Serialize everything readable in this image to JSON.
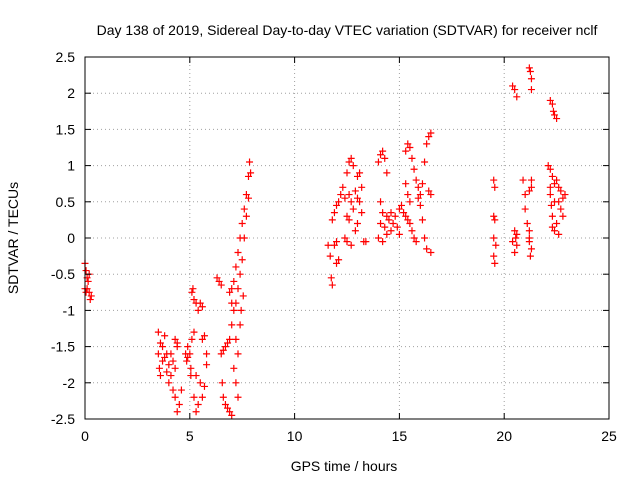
{
  "chart_data": {
    "type": "scatter",
    "title": "Day 138 of 2019, Sidereal Day-to-day VTEC variation (SDTVAR) for receiver nclf",
    "xlabel": "GPS time / hours",
    "ylabel": "SDTVAR / TECUs",
    "xlim": [
      0,
      25
    ],
    "ylim": [
      -2.5,
      2.5
    ],
    "xticks": [
      "0",
      "5",
      "10",
      "15",
      "20",
      "25"
    ],
    "yticks": [
      "-2.5",
      "-2",
      "-1.5",
      "-1",
      "-0.5",
      "0",
      "0.5",
      "1",
      "1.5",
      "2",
      "2.5"
    ],
    "grid": true,
    "marker": "+",
    "color": "#ff0000",
    "series": [
      {
        "points": [
          [
            0.0,
            -0.35
          ],
          [
            0.05,
            -0.45
          ],
          [
            0.1,
            -0.55
          ],
          [
            0.1,
            -0.7
          ],
          [
            0.15,
            -0.6
          ],
          [
            0.2,
            -0.5
          ],
          [
            0.2,
            -0.75
          ],
          [
            0.25,
            -0.85
          ],
          [
            0.3,
            -0.8
          ],
          [
            0.0,
            -0.7
          ],
          [
            0.05,
            -0.75
          ],
          [
            3.5,
            -1.3
          ],
          [
            3.5,
            -1.6
          ],
          [
            3.55,
            -1.8
          ],
          [
            3.6,
            -1.45
          ],
          [
            3.6,
            -1.9
          ],
          [
            3.7,
            -1.5
          ],
          [
            3.7,
            -1.7
          ],
          [
            3.8,
            -1.35
          ],
          [
            3.8,
            -1.65
          ],
          [
            3.9,
            -1.6
          ],
          [
            3.9,
            -1.85
          ],
          [
            4.0,
            -1.75
          ],
          [
            4.0,
            -2.0
          ],
          [
            4.1,
            -1.6
          ],
          [
            4.1,
            -1.9
          ],
          [
            4.2,
            -1.7
          ],
          [
            4.2,
            -2.1
          ],
          [
            4.3,
            -1.8
          ],
          [
            4.3,
            -2.2
          ],
          [
            4.4,
            -1.5
          ],
          [
            4.4,
            -2.4
          ],
          [
            4.5,
            -2.3
          ],
          [
            4.6,
            -2.1
          ],
          [
            4.3,
            -1.4
          ],
          [
            4.4,
            -1.45
          ],
          [
            4.8,
            -1.6
          ],
          [
            4.85,
            -1.7
          ],
          [
            4.9,
            -1.5
          ],
          [
            5.0,
            -1.6
          ],
          [
            5.05,
            -1.8
          ],
          [
            5.1,
            -1.4
          ],
          [
            5.2,
            -1.3
          ],
          [
            5.2,
            -2.2
          ],
          [
            5.3,
            -2.4
          ],
          [
            5.3,
            -1.9
          ],
          [
            5.4,
            -2.3
          ],
          [
            5.5,
            -2.0
          ],
          [
            5.6,
            -2.2
          ],
          [
            5.7,
            -2.05
          ],
          [
            5.1,
            -0.75
          ],
          [
            5.15,
            -0.7
          ],
          [
            5.2,
            -0.85
          ],
          [
            5.3,
            -0.9
          ],
          [
            5.4,
            -1.0
          ],
          [
            5.5,
            -0.9
          ],
          [
            5.6,
            -0.95
          ],
          [
            5.6,
            -1.4
          ],
          [
            5.7,
            -1.35
          ],
          [
            5.8,
            -1.6
          ],
          [
            5.8,
            -1.75
          ],
          [
            4.9,
            -1.65
          ],
          [
            5.05,
            -1.9
          ],
          [
            6.3,
            -0.55
          ],
          [
            6.4,
            -0.6
          ],
          [
            6.5,
            -0.65
          ],
          [
            6.5,
            -1.6
          ],
          [
            6.55,
            -2.0
          ],
          [
            6.6,
            -1.55
          ],
          [
            6.6,
            -2.2
          ],
          [
            6.7,
            -1.5
          ],
          [
            6.7,
            -2.3
          ],
          [
            6.8,
            -1.45
          ],
          [
            6.8,
            -2.35
          ],
          [
            6.9,
            -1.4
          ],
          [
            6.9,
            -2.4
          ],
          [
            7.0,
            -2.45
          ],
          [
            7.0,
            -0.7
          ],
          [
            7.0,
            -1.2
          ],
          [
            7.1,
            -0.6
          ],
          [
            7.1,
            -1.0
          ],
          [
            7.2,
            -0.4
          ],
          [
            7.2,
            -0.9
          ],
          [
            7.3,
            -0.2
          ],
          [
            7.3,
            -0.7
          ],
          [
            7.4,
            0.0
          ],
          [
            7.4,
            -0.5
          ],
          [
            7.5,
            0.2
          ],
          [
            7.5,
            -0.3
          ],
          [
            7.6,
            0.4
          ],
          [
            7.6,
            0.0
          ],
          [
            7.7,
            0.6
          ],
          [
            7.7,
            0.3
          ],
          [
            7.8,
            0.85
          ],
          [
            7.8,
            0.55
          ],
          [
            7.85,
            1.05
          ],
          [
            7.9,
            0.9
          ],
          [
            7.2,
            -1.4
          ],
          [
            7.3,
            -1.6
          ],
          [
            7.4,
            -1.2
          ],
          [
            7.1,
            -1.8
          ],
          [
            7.2,
            -2.0
          ],
          [
            7.3,
            -2.2
          ],
          [
            7.0,
            -0.9
          ],
          [
            7.45,
            -1.0
          ],
          [
            7.55,
            -0.8
          ],
          [
            6.9,
            -0.75
          ],
          [
            11.6,
            -0.1
          ],
          [
            11.7,
            -0.25
          ],
          [
            11.75,
            -0.55
          ],
          [
            11.8,
            -0.65
          ],
          [
            11.9,
            -0.1
          ],
          [
            12.0,
            -0.05
          ],
          [
            12.0,
            -0.35
          ],
          [
            12.1,
            -0.3
          ],
          [
            11.8,
            0.25
          ],
          [
            11.9,
            0.35
          ],
          [
            12.0,
            0.45
          ],
          [
            12.1,
            0.5
          ],
          [
            12.2,
            0.6
          ],
          [
            12.3,
            0.7
          ],
          [
            12.4,
            0.55
          ],
          [
            12.4,
            0.0
          ],
          [
            12.5,
            0.3
          ],
          [
            12.5,
            -0.05
          ],
          [
            12.5,
            0.9
          ],
          [
            12.6,
            1.05
          ],
          [
            12.6,
            0.25
          ],
          [
            12.7,
            1.1
          ],
          [
            12.7,
            0.5
          ],
          [
            12.7,
            -0.1
          ],
          [
            12.8,
            1.0
          ],
          [
            12.8,
            0.4
          ],
          [
            12.9,
            0.65
          ],
          [
            12.9,
            0.1
          ],
          [
            13.0,
            0.85
          ],
          [
            13.0,
            0.55
          ],
          [
            13.1,
            0.5
          ],
          [
            13.1,
            0.9
          ],
          [
            13.2,
            0.35
          ],
          [
            13.2,
            0.7
          ],
          [
            13.3,
            -0.05
          ],
          [
            13.4,
            -0.05
          ],
          [
            13.0,
            0.2
          ],
          [
            12.6,
            0.6
          ],
          [
            14.0,
            1.05
          ],
          [
            14.1,
            1.15
          ],
          [
            14.2,
            1.2
          ],
          [
            14.3,
            1.1
          ],
          [
            14.4,
            0.9
          ],
          [
            14.1,
            0.5
          ],
          [
            14.1,
            0.2
          ],
          [
            14.2,
            0.35
          ],
          [
            14.3,
            0.15
          ],
          [
            14.4,
            0.3
          ],
          [
            14.5,
            0.25
          ],
          [
            14.6,
            0.35
          ],
          [
            14.7,
            0.2
          ],
          [
            14.8,
            0.3
          ],
          [
            14.9,
            0.15
          ],
          [
            15.0,
            0.05
          ],
          [
            15.0,
            0.4
          ],
          [
            15.1,
            0.45
          ],
          [
            15.2,
            0.35
          ],
          [
            14.0,
            0.0
          ],
          [
            14.2,
            -0.05
          ],
          [
            14.4,
            0.05
          ],
          [
            14.6,
            0.1
          ],
          [
            15.3,
            0.3
          ],
          [
            15.4,
            0.25
          ],
          [
            15.5,
            0.2
          ],
          [
            15.6,
            0.1
          ],
          [
            15.7,
            0.0
          ],
          [
            15.8,
            -0.05
          ],
          [
            15.3,
            1.2
          ],
          [
            15.4,
            1.3
          ],
          [
            15.5,
            1.25
          ],
          [
            15.6,
            1.1
          ],
          [
            15.7,
            0.95
          ],
          [
            15.8,
            0.8
          ],
          [
            15.9,
            0.7
          ],
          [
            15.9,
            0.55
          ],
          [
            16.0,
            0.6
          ],
          [
            16.0,
            0.45
          ],
          [
            16.1,
            0.75
          ],
          [
            16.1,
            0.25
          ],
          [
            16.2,
            1.05
          ],
          [
            16.2,
            0.0
          ],
          [
            16.3,
            1.3
          ],
          [
            16.3,
            -0.15
          ],
          [
            16.4,
            1.4
          ],
          [
            16.4,
            0.65
          ],
          [
            16.5,
            1.45
          ],
          [
            16.5,
            0.6
          ],
          [
            16.5,
            -0.2
          ],
          [
            15.3,
            0.75
          ],
          [
            15.4,
            0.6
          ],
          [
            15.5,
            0.5
          ],
          [
            19.5,
            0.8
          ],
          [
            19.55,
            0.7
          ],
          [
            19.5,
            0.3
          ],
          [
            19.55,
            0.25
          ],
          [
            19.5,
            0.0
          ],
          [
            19.6,
            -0.1
          ],
          [
            19.5,
            -0.25
          ],
          [
            19.55,
            -0.35
          ],
          [
            20.4,
            2.1
          ],
          [
            20.5,
            2.05
          ],
          [
            20.6,
            1.95
          ],
          [
            20.5,
            0.1
          ],
          [
            20.55,
            0.0
          ],
          [
            20.6,
            -0.1
          ],
          [
            20.5,
            -0.2
          ],
          [
            20.6,
            0.05
          ],
          [
            20.4,
            -0.05
          ],
          [
            20.9,
            0.8
          ],
          [
            21.0,
            0.6
          ],
          [
            21.0,
            0.4
          ],
          [
            21.1,
            0.2
          ],
          [
            21.2,
            2.35
          ],
          [
            21.25,
            2.3
          ],
          [
            21.3,
            2.2
          ],
          [
            21.3,
            2.05
          ],
          [
            21.3,
            0.8
          ],
          [
            21.2,
            0.65
          ],
          [
            21.2,
            0.1
          ],
          [
            21.2,
            -0.05
          ],
          [
            21.3,
            -0.15
          ],
          [
            21.25,
            -0.25
          ],
          [
            21.2,
            0.0
          ],
          [
            21.3,
            0.7
          ],
          [
            22.1,
            1.0
          ],
          [
            22.2,
            0.95
          ],
          [
            22.3,
            0.85
          ],
          [
            22.4,
            0.75
          ],
          [
            22.2,
            0.6
          ],
          [
            22.25,
            0.45
          ],
          [
            22.3,
            0.3
          ],
          [
            22.3,
            0.15
          ],
          [
            22.4,
            0.1
          ],
          [
            22.5,
            0.2
          ],
          [
            22.6,
            0.05
          ],
          [
            22.6,
            0.5
          ],
          [
            22.7,
            0.65
          ],
          [
            22.7,
            0.4
          ],
          [
            22.8,
            0.55
          ],
          [
            22.2,
            1.9
          ],
          [
            22.3,
            1.85
          ],
          [
            22.35,
            1.75
          ],
          [
            22.4,
            1.7
          ],
          [
            22.5,
            1.65
          ],
          [
            22.5,
            0.8
          ],
          [
            22.6,
            0.7
          ],
          [
            22.8,
            0.3
          ],
          [
            22.9,
            0.6
          ],
          [
            22.4,
            0.5
          ],
          [
            22.2,
            0.7
          ]
        ]
      }
    ]
  }
}
